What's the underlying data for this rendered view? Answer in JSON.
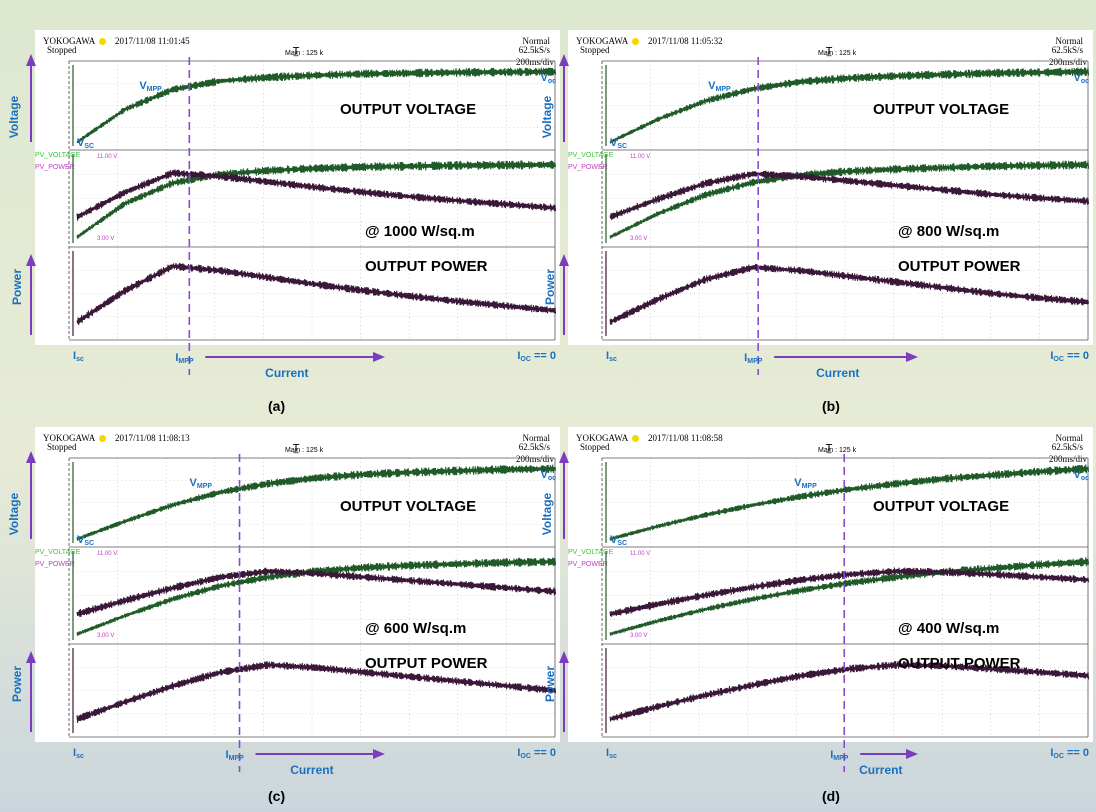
{
  "scope": {
    "brand": "YOKOGAWA",
    "status": "Stopped",
    "mode": "Normal",
    "sample_rate": "62.5kS/s",
    "main_label": "Main : 125 k",
    "time_div": "200ms/div",
    "trigger_mark": "T̲",
    "ch_voltage": "PV_VOLTAGE",
    "ch_power": "PV_POWER",
    "level_top": "11.00 V",
    "level_bottom": "3.00 V"
  },
  "labels": {
    "voltage_axis": "Voltage",
    "power_axis": "Power",
    "current_axis": "Current",
    "output_voltage": "OUTPUT VOLTAGE",
    "output_power": "OUTPUT POWER",
    "voc": "V",
    "voc_sub": "oc",
    "vmpp": "V",
    "vmpp_sub": "MPP",
    "vsc": "V",
    "vsc_sub": "SC",
    "isc": "I",
    "isc_sub": "sc",
    "impp": "I",
    "impp_sub": "MPP",
    "ioc": "I",
    "ioc_sub": "OC",
    "ioc_tail": " == 0"
  },
  "colors": {
    "voltage_trace": "#1f5a28",
    "power_trace": "#3a1838",
    "mpp_line": "#8a4ad0",
    "axis_arrow": "#7b3cc0",
    "label_blue": "#1a6fc0"
  },
  "chart_data": [
    {
      "type": "line",
      "panel": "(a)",
      "date": "2017/11/08 11:01:45",
      "irradiance": "@ 1000 W/sq.m",
      "mpp_fraction": 0.235,
      "x": [
        0,
        0.1,
        0.2,
        0.3,
        0.4,
        0.5,
        0.6,
        0.7,
        0.8,
        0.9,
        1.0
      ],
      "series": [
        {
          "name": "PV_VOLTAGE",
          "values": [
            0.0,
            0.46,
            0.74,
            0.86,
            0.91,
            0.94,
            0.96,
            0.97,
            0.98,
            0.985,
            0.99
          ]
        },
        {
          "name": "PV_POWER",
          "values": [
            0.0,
            0.55,
            0.98,
            0.9,
            0.78,
            0.66,
            0.55,
            0.45,
            0.36,
            0.28,
            0.2
          ]
        }
      ]
    },
    {
      "type": "line",
      "panel": "(b)",
      "date": "2017/11/08 11:05:32",
      "irradiance": "@ 800 W/sq.m",
      "mpp_fraction": 0.31,
      "x": [
        0,
        0.1,
        0.2,
        0.3,
        0.4,
        0.5,
        0.6,
        0.7,
        0.8,
        0.9,
        1.0
      ],
      "series": [
        {
          "name": "PV_VOLTAGE",
          "values": [
            0.0,
            0.32,
            0.58,
            0.75,
            0.85,
            0.9,
            0.93,
            0.95,
            0.97,
            0.98,
            0.99
          ]
        },
        {
          "name": "PV_POWER",
          "values": [
            0.0,
            0.4,
            0.75,
            0.96,
            0.9,
            0.8,
            0.7,
            0.6,
            0.5,
            0.42,
            0.35
          ]
        }
      ]
    },
    {
      "type": "line",
      "panel": "(c)",
      "date": "2017/11/08 11:08:13",
      "irradiance": "@ 600 W/sq.m",
      "mpp_fraction": 0.34,
      "x": [
        0,
        0.1,
        0.2,
        0.3,
        0.4,
        0.5,
        0.6,
        0.7,
        0.8,
        0.9,
        1.0
      ],
      "series": [
        {
          "name": "PV_VOLTAGE",
          "values": [
            0.0,
            0.25,
            0.48,
            0.66,
            0.78,
            0.86,
            0.91,
            0.94,
            0.96,
            0.98,
            0.99
          ]
        },
        {
          "name": "PV_POWER",
          "values": [
            0.0,
            0.3,
            0.58,
            0.82,
            0.95,
            0.9,
            0.82,
            0.74,
            0.66,
            0.58,
            0.5
          ]
        }
      ]
    },
    {
      "type": "line",
      "panel": "(d)",
      "date": "2017/11/08 11:08:58",
      "irradiance": "@ 400 W/sq.m",
      "mpp_fraction": 0.49,
      "x": [
        0,
        0.1,
        0.2,
        0.3,
        0.4,
        0.5,
        0.6,
        0.7,
        0.8,
        0.9,
        1.0
      ],
      "series": [
        {
          "name": "PV_VOLTAGE",
          "values": [
            0.0,
            0.18,
            0.34,
            0.48,
            0.6,
            0.7,
            0.78,
            0.85,
            0.9,
            0.95,
            0.99
          ]
        },
        {
          "name": "PV_POWER",
          "values": [
            0.0,
            0.22,
            0.42,
            0.6,
            0.76,
            0.88,
            0.95,
            0.93,
            0.88,
            0.82,
            0.76
          ]
        }
      ]
    }
  ]
}
